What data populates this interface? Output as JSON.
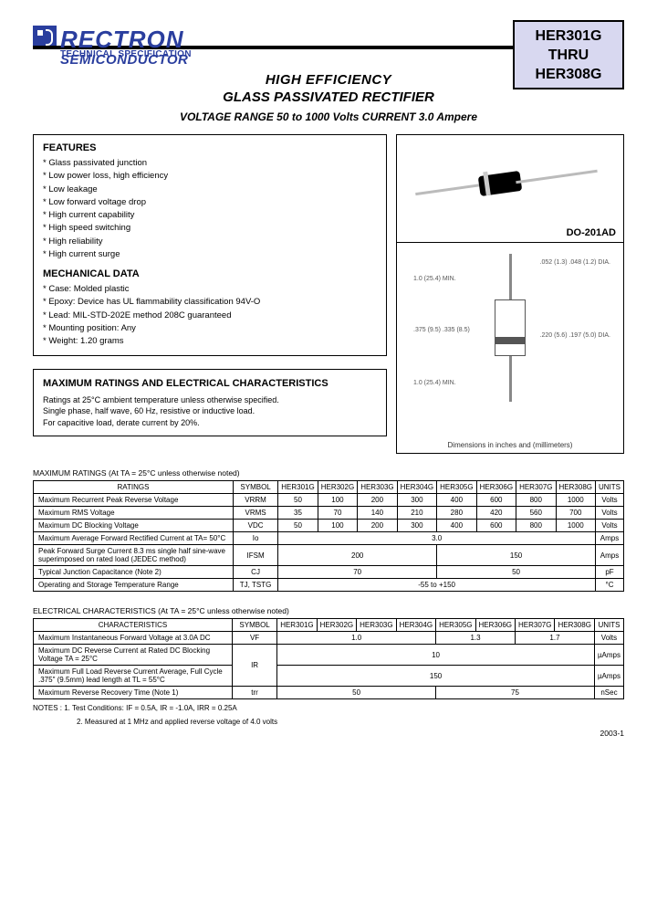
{
  "company": "RECTRON",
  "sub1": "SEMICONDUCTOR",
  "sub2": "TECHNICAL SPECIFICATION",
  "part_from": "HER301G",
  "part_mid": "THRU",
  "part_to": "HER308G",
  "title1": "HIGH EFFICIENCY",
  "title2": "GLASS PASSIVATED RECTIFIER",
  "title3": "VOLTAGE RANGE  50 to 1000 Volts   CURRENT 3.0 Ampere",
  "features_h": "FEATURES",
  "features": [
    "Glass passivated junction",
    "Low power loss, high efficiency",
    "Low leakage",
    "Low forward voltage drop",
    "High current capability",
    "High speed switching",
    "High reliability",
    "High current surge"
  ],
  "mech_h": "MECHANICAL DATA",
  "mech": [
    "Case: Molded plastic",
    "Epoxy: Device has UL flammability classification 94V-O",
    "Lead: MIL-STD-202E method 208C guaranteed",
    "Mounting position: Any",
    "Weight: 1.20 grams"
  ],
  "max_h": "MAXIMUM RATINGS AND ELECTRICAL CHARACTERISTICS",
  "max_l1": "Ratings at 25°C ambient temperature unless otherwise specified.",
  "max_l2": "Single phase, half wave, 60 Hz, resistive or inductive load.",
  "max_l3": "For capacitive load, derate current by 20%.",
  "pkg": "DO-201AD",
  "dim_caption": "Dimensions in inches and (millimeters)",
  "dims": {
    "a": "1.0 (25.4) MIN.",
    "b": ".052 (1.3) .048 (1.2) DIA.",
    "c": ".375 (9.5) .335 (8.5)",
    "d": ".220 (5.6) .197 (5.0) DIA.",
    "e": "1.0 (25.4) MIN."
  },
  "tbl1_title": "MAXIMUM RATINGS ",
  "tbl1_note": "(At TA = 25°C unless otherwise noted)",
  "tbl1_head": [
    "RATINGS",
    "SYMBOL",
    "HER301G",
    "HER302G",
    "HER303G",
    "HER304G",
    "HER305G",
    "HER306G",
    "HER307G",
    "HER308G",
    "UNITS"
  ],
  "tbl1_rows": [
    {
      "l": "Maximum Recurrent Peak Reverse Voltage",
      "s": "VRRM",
      "v": [
        "50",
        "100",
        "200",
        "300",
        "400",
        "600",
        "800",
        "1000"
      ],
      "u": "Volts"
    },
    {
      "l": "Maximum RMS Voltage",
      "s": "VRMS",
      "v": [
        "35",
        "70",
        "140",
        "210",
        "280",
        "420",
        "560",
        "700"
      ],
      "u": "Volts"
    },
    {
      "l": "Maximum DC Blocking Voltage",
      "s": "VDC",
      "v": [
        "50",
        "100",
        "200",
        "300",
        "400",
        "600",
        "800",
        "1000"
      ],
      "u": "Volts"
    },
    {
      "l": "Maximum Average Forward Rectified Current at TA= 50°C",
      "s": "Io",
      "v8": "3.0",
      "u": "Amps"
    },
    {
      "l": "Peak Forward Surge Current 8.3 ms single half sine-wave superimposed on rated load (JEDEC method)",
      "s": "IFSM",
      "v4a": "200",
      "v4b": "150",
      "u": "Amps"
    },
    {
      "l": "Typical Junction Capacitance (Note 2)",
      "s": "CJ",
      "v4a": "70",
      "v4b": "50",
      "u": "pF"
    },
    {
      "l": "Operating and Storage Temperature Range",
      "s": "TJ, TSTG",
      "v8": "-55 to +150",
      "u": "°C"
    }
  ],
  "tbl2_title": "ELECTRICAL CHARACTERISTICS ",
  "tbl2_note": "(At TA = 25°C unless otherwise noted)",
  "tbl2_head": [
    "CHARACTERISTICS",
    "SYMBOL",
    "HER301G",
    "HER302G",
    "HER303G",
    "HER304G",
    "HER305G",
    "HER306G",
    "HER307G",
    "HER308G",
    "UNITS"
  ],
  "tbl2_rows": [
    {
      "l": "Maximum Instantaneous Forward Voltage at 3.0A DC",
      "s": "VF",
      "va": "1.0",
      "vb": "1.3",
      "vc": "1.7",
      "u": "Volts"
    },
    {
      "l": "Maximum DC Reverse Current at Rated DC Blocking Voltage TA = 25°C",
      "s": "IR",
      "v8": "10",
      "u": "µAmps",
      "rowspan_s": 2
    },
    {
      "l": "Maximum Full Load Reverse Current Average, Full Cycle .375\" (9.5mm) lead length at TL = 55°C",
      "v8": "150",
      "u": "µAmps"
    },
    {
      "l": "Maximum Reverse Recovery Time (Note 1)",
      "s": "trr",
      "v4a": "50",
      "v4b": "75",
      "u": "nSec"
    }
  ],
  "notes1": "NOTES :  1. Test Conditions: IF = 0.5A, IR = -1.0A, IRR = 0.25A",
  "notes2": "2. Measured at 1 MHz and applied reverse voltage of 4.0 volts",
  "footer": "2003-1"
}
